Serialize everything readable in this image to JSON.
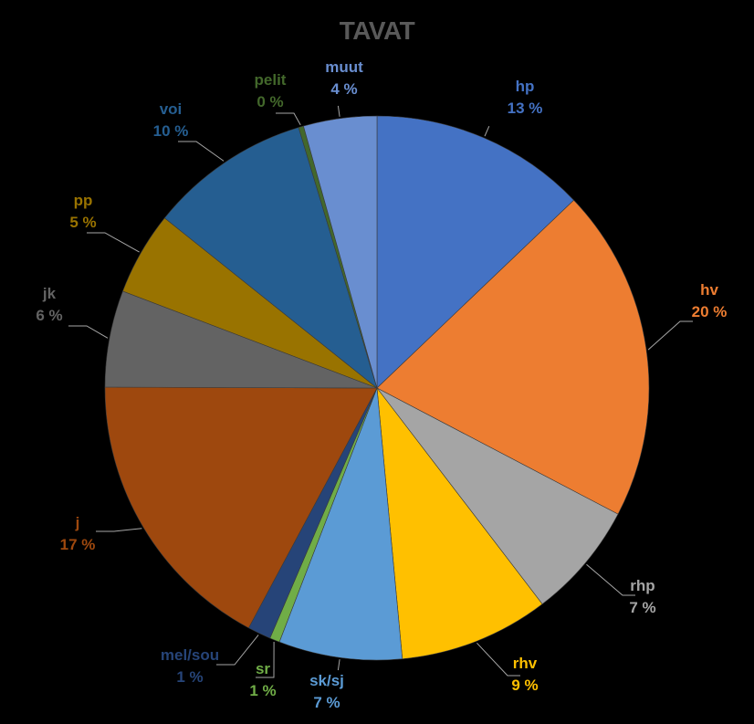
{
  "chart_data": {
    "type": "pie",
    "title": "TAVAT",
    "start_angle_deg": 0,
    "direction": "clockwise",
    "legend": "none",
    "slices": [
      {
        "label": "hp",
        "value": 13.0,
        "value_label": "13 %",
        "color": "#4472C4",
        "label_color": "#4472C4"
      },
      {
        "label": "hv",
        "value": 20.0,
        "value_label": "20 %",
        "color": "#ED7D31",
        "label_color": "#ED7D31"
      },
      {
        "label": "rhp",
        "value": 7.0,
        "value_label": "7 %",
        "color": "#A5A5A5",
        "label_color": "#A5A5A5"
      },
      {
        "label": "rhv",
        "value": 9.0,
        "value_label": "9 %",
        "color": "#FFC000",
        "label_color": "#FFC000"
      },
      {
        "label": "sk/sj",
        "value": 7.4,
        "value_label": "7 %",
        "color": "#5B9BD5",
        "label_color": "#5B9BD5"
      },
      {
        "label": "sr",
        "value": 0.6,
        "value_label": "1 %",
        "color": "#70AD47",
        "label_color": "#70AD47"
      },
      {
        "label": "mel/sou",
        "value": 1.4,
        "value_label": "1 %",
        "color": "#264478",
        "label_color": "#264478"
      },
      {
        "label": "j",
        "value": 17.4,
        "value_label": "17 %",
        "color": "#9E480E",
        "label_color": "#9E480E"
      },
      {
        "label": "jk",
        "value": 5.8,
        "value_label": "6 %",
        "color": "#636363",
        "label_color": "#636363"
      },
      {
        "label": "pp",
        "value": 5.0,
        "value_label": "5 %",
        "color": "#997300",
        "label_color": "#997300"
      },
      {
        "label": "voi",
        "value": 9.7,
        "value_label": "10 %",
        "color": "#255E91",
        "label_color": "#255E91"
      },
      {
        "label": "pelit",
        "value": 0.3,
        "value_label": "0 %",
        "color": "#43682B",
        "label_color": "#43682B"
      },
      {
        "label": "muut",
        "value": 4.4,
        "value_label": "4 %",
        "color": "#698ED0",
        "label_color": "#698ED0"
      }
    ]
  }
}
